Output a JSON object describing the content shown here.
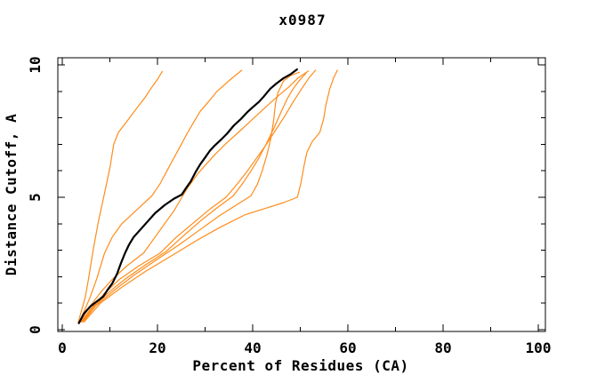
{
  "window": {
    "background": "#ffffff"
  },
  "chart_data": {
    "type": "line",
    "title": "x0987",
    "xlabel": "Percent of Residues (CA)",
    "ylabel": "Distance Cutoff, A",
    "xlim": [
      0,
      102.5
    ],
    "ylim": [
      0,
      10.3
    ],
    "x_major_ticks": [
      0,
      20,
      40,
      60,
      80,
      100
    ],
    "x_minor_ticks": [
      10,
      30,
      50,
      70,
      90
    ],
    "y_major_ticks": [
      0,
      5,
      10
    ],
    "y_minor_ticks": [
      1,
      2,
      3,
      4,
      6,
      7,
      8,
      9
    ],
    "grid": false,
    "legend": null,
    "frame": true,
    "tick_style": "inward-mirrored",
    "colors": {
      "frame": "#000000",
      "text": "#000000",
      "model_series": "#ff8c1a",
      "reference_series": "#000000"
    },
    "series": [
      {
        "name": "model-1",
        "color_key": "model_series",
        "width": 1.2,
        "points": [
          [
            3.3,
            0.25
          ],
          [
            4,
            0.7
          ],
          [
            4.8,
            1.2
          ],
          [
            5.5,
            1.9
          ],
          [
            6.4,
            2.9
          ],
          [
            7,
            3.5
          ],
          [
            7.6,
            4.1
          ],
          [
            8.7,
            5.0
          ],
          [
            9.4,
            5.6
          ],
          [
            10.1,
            6.2
          ],
          [
            10.8,
            7.0
          ],
          [
            11.8,
            7.45
          ],
          [
            13.5,
            7.85
          ],
          [
            15.8,
            8.4
          ],
          [
            17.3,
            8.75
          ],
          [
            18.6,
            9.1
          ],
          [
            20,
            9.45
          ],
          [
            21,
            9.75
          ]
        ]
      },
      {
        "name": "model-2",
        "color_key": "model_series",
        "width": 1.2,
        "points": [
          [
            3.6,
            0.25
          ],
          [
            4.6,
            0.7
          ],
          [
            5.8,
            1.2
          ],
          [
            7.2,
            1.9
          ],
          [
            8.9,
            2.9
          ],
          [
            10.5,
            3.5
          ],
          [
            12.5,
            4.0
          ],
          [
            15.5,
            4.5
          ],
          [
            18.8,
            5.05
          ],
          [
            20.5,
            5.5
          ],
          [
            22,
            6.0
          ],
          [
            23.8,
            6.6
          ],
          [
            25,
            7.0
          ],
          [
            26.2,
            7.4
          ],
          [
            27.5,
            7.8
          ],
          [
            29,
            8.25
          ],
          [
            30.7,
            8.6
          ],
          [
            32.5,
            9.0
          ],
          [
            35,
            9.4
          ],
          [
            37.7,
            9.8
          ]
        ]
      },
      {
        "name": "model-3",
        "color_key": "model_series",
        "width": 1.2,
        "points": [
          [
            3.8,
            0.3
          ],
          [
            5.5,
            0.8
          ],
          [
            8,
            1.4
          ],
          [
            10.5,
            1.9
          ],
          [
            13.5,
            2.4
          ],
          [
            17.1,
            2.9
          ],
          [
            19.5,
            3.5
          ],
          [
            21.5,
            4.0
          ],
          [
            23.5,
            4.5
          ],
          [
            25.3,
            5.05
          ],
          [
            26.3,
            5.35
          ],
          [
            27.3,
            5.6
          ],
          [
            28.5,
            5.9
          ],
          [
            30,
            6.2
          ],
          [
            32,
            6.6
          ],
          [
            34.5,
            7.05
          ],
          [
            37,
            7.45
          ],
          [
            40,
            7.95
          ],
          [
            43,
            8.45
          ],
          [
            45.5,
            8.85
          ],
          [
            47.5,
            9.15
          ],
          [
            49.5,
            9.5
          ],
          [
            51.7,
            9.77
          ]
        ]
      },
      {
        "name": "model-4",
        "color_key": "model_series",
        "width": 1.2,
        "points": [
          [
            4,
            0.3
          ],
          [
            6,
            0.8
          ],
          [
            9,
            1.4
          ],
          [
            12,
            1.9
          ],
          [
            16,
            2.4
          ],
          [
            20.6,
            2.9
          ],
          [
            24,
            3.5
          ],
          [
            28,
            4.1
          ],
          [
            31,
            4.55
          ],
          [
            34.4,
            5.0
          ],
          [
            36.5,
            5.45
          ],
          [
            38.5,
            5.9
          ],
          [
            40.5,
            6.4
          ],
          [
            42.5,
            6.9
          ],
          [
            44.5,
            7.45
          ],
          [
            46.5,
            8.0
          ],
          [
            48.5,
            8.6
          ],
          [
            50.3,
            9.1
          ],
          [
            51.8,
            9.5
          ],
          [
            53.2,
            9.8
          ]
        ]
      },
      {
        "name": "model-5",
        "color_key": "model_series",
        "width": 1.2,
        "points": [
          [
            4.2,
            0.3
          ],
          [
            6.5,
            0.85
          ],
          [
            10,
            1.45
          ],
          [
            13.5,
            1.95
          ],
          [
            17.5,
            2.45
          ],
          [
            21.8,
            2.95
          ],
          [
            25.5,
            3.55
          ],
          [
            29,
            4.1
          ],
          [
            32.5,
            4.6
          ],
          [
            35.9,
            5.05
          ],
          [
            37.8,
            5.5
          ],
          [
            39.5,
            5.95
          ],
          [
            41.2,
            6.45
          ],
          [
            42.8,
            7.0
          ],
          [
            44.3,
            7.55
          ],
          [
            45.8,
            8.15
          ],
          [
            47.2,
            8.7
          ],
          [
            48.5,
            9.1
          ],
          [
            50,
            9.45
          ],
          [
            51.2,
            9.68
          ]
        ]
      },
      {
        "name": "model-6",
        "color_key": "model_series",
        "width": 1.2,
        "points": [
          [
            4.4,
            0.3
          ],
          [
            7,
            0.9
          ],
          [
            11,
            1.5
          ],
          [
            15,
            2.05
          ],
          [
            19.5,
            2.6
          ],
          [
            24.5,
            3.2
          ],
          [
            29.5,
            3.85
          ],
          [
            33,
            4.3
          ],
          [
            36.5,
            4.7
          ],
          [
            39.6,
            5.05
          ],
          [
            41,
            5.5
          ],
          [
            42,
            6.0
          ],
          [
            43,
            6.6
          ],
          [
            43.8,
            7.2
          ],
          [
            44.4,
            7.9
          ],
          [
            44.8,
            8.55
          ],
          [
            45.3,
            8.95
          ],
          [
            46.5,
            9.4
          ],
          [
            48,
            9.6
          ],
          [
            49.8,
            9.72
          ]
        ]
      },
      {
        "name": "model-7",
        "color_key": "model_series",
        "width": 1.2,
        "points": [
          [
            4.6,
            0.3
          ],
          [
            8,
            1.0
          ],
          [
            12.5,
            1.6
          ],
          [
            17.5,
            2.2
          ],
          [
            23,
            2.8
          ],
          [
            28.5,
            3.4
          ],
          [
            33.5,
            3.9
          ],
          [
            38.5,
            4.35
          ],
          [
            43,
            4.6
          ],
          [
            46.5,
            4.8
          ],
          [
            49.4,
            5.0
          ],
          [
            50.2,
            5.6
          ],
          [
            50.8,
            6.2
          ],
          [
            51.4,
            6.7
          ],
          [
            52.5,
            7.1
          ],
          [
            54.1,
            7.45
          ],
          [
            54.9,
            7.95
          ],
          [
            55.4,
            8.5
          ],
          [
            56.2,
            9.1
          ],
          [
            57,
            9.5
          ],
          [
            57.8,
            9.8
          ]
        ]
      },
      {
        "name": "reference",
        "color_key": "reference_series",
        "width": 2.2,
        "points": [
          [
            3.5,
            0.25
          ],
          [
            4.5,
            0.6
          ],
          [
            6,
            0.9
          ],
          [
            7.5,
            1.1
          ],
          [
            8.6,
            1.25
          ],
          [
            9.5,
            1.5
          ],
          [
            10.5,
            1.75
          ],
          [
            11.5,
            2.1
          ],
          [
            12.3,
            2.5
          ],
          [
            13.2,
            2.9
          ],
          [
            14,
            3.2
          ],
          [
            15,
            3.5
          ],
          [
            16.5,
            3.8
          ],
          [
            18,
            4.1
          ],
          [
            19.5,
            4.4
          ],
          [
            21.5,
            4.7
          ],
          [
            23.5,
            4.95
          ],
          [
            25.1,
            5.1
          ],
          [
            26,
            5.35
          ],
          [
            27,
            5.6
          ],
          [
            28,
            5.95
          ],
          [
            29,
            6.25
          ],
          [
            30,
            6.5
          ],
          [
            31,
            6.75
          ],
          [
            32,
            6.95
          ],
          [
            33.5,
            7.2
          ],
          [
            34.6,
            7.4
          ],
          [
            36,
            7.7
          ],
          [
            37.5,
            7.95
          ],
          [
            38.8,
            8.2
          ],
          [
            40,
            8.4
          ],
          [
            41.3,
            8.6
          ],
          [
            42.3,
            8.8
          ],
          [
            43.7,
            9.1
          ],
          [
            45,
            9.3
          ],
          [
            46.5,
            9.5
          ],
          [
            48,
            9.65
          ],
          [
            49.3,
            9.83
          ]
        ]
      }
    ]
  }
}
